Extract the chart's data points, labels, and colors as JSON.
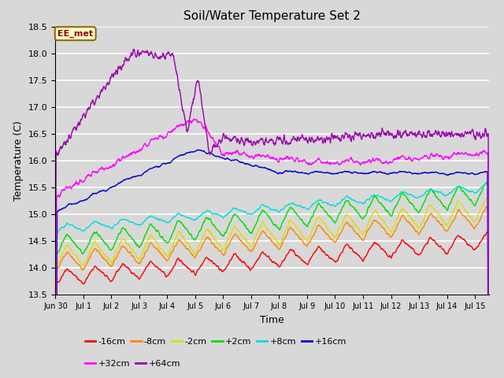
{
  "title": "Soil/Water Temperature Set 2",
  "xlabel": "Time",
  "ylabel": "Temperature (C)",
  "ylim": [
    13.5,
    18.5
  ],
  "xlim": [
    0,
    15.5
  ],
  "fig_bg": "#d8d8d8",
  "plot_bg": "#d8d8d8",
  "annotation_text": "EE_met",
  "annotation_bg": "#ffffcc",
  "annotation_border": "#996600",
  "annotation_text_color": "#880000",
  "xtick_labels": [
    "Jun 30",
    "Jul 1",
    "Jul 2",
    "Jul 3",
    "Jul 4",
    "Jul 5",
    "Jul 6",
    "Jul 7",
    "Jul 8",
    "Jul 9",
    "Jul 10",
    "Jul 11",
    "Jul 12",
    "Jul 13",
    "Jul 14",
    "Jul 15"
  ],
  "xtick_positions": [
    0,
    1,
    2,
    3,
    4,
    5,
    6,
    7,
    8,
    9,
    10,
    11,
    12,
    13,
    14,
    15
  ],
  "ytick_labels": [
    "13.5",
    "14.0",
    "14.5",
    "15.0",
    "15.5",
    "16.0",
    "16.5",
    "17.0",
    "17.5",
    "18.0",
    "18.5"
  ],
  "ytick_positions": [
    13.5,
    14.0,
    14.5,
    15.0,
    15.5,
    16.0,
    16.5,
    17.0,
    17.5,
    18.0,
    18.5
  ],
  "series": [
    {
      "label": "-16cm",
      "color": "#ff0000"
    },
    {
      "label": "-8cm",
      "color": "#ff8800"
    },
    {
      "label": "-2cm",
      "color": "#dddd00"
    },
    {
      "label": "+2cm",
      "color": "#00dd00"
    },
    {
      "label": "+8cm",
      "color": "#00dddd"
    },
    {
      "label": "+16cm",
      "color": "#0000cc"
    },
    {
      "label": "+32cm",
      "color": "#ff00ff"
    },
    {
      "label": "+64cm",
      "color": "#9900aa"
    }
  ],
  "n_points": 1500,
  "seed": 42
}
